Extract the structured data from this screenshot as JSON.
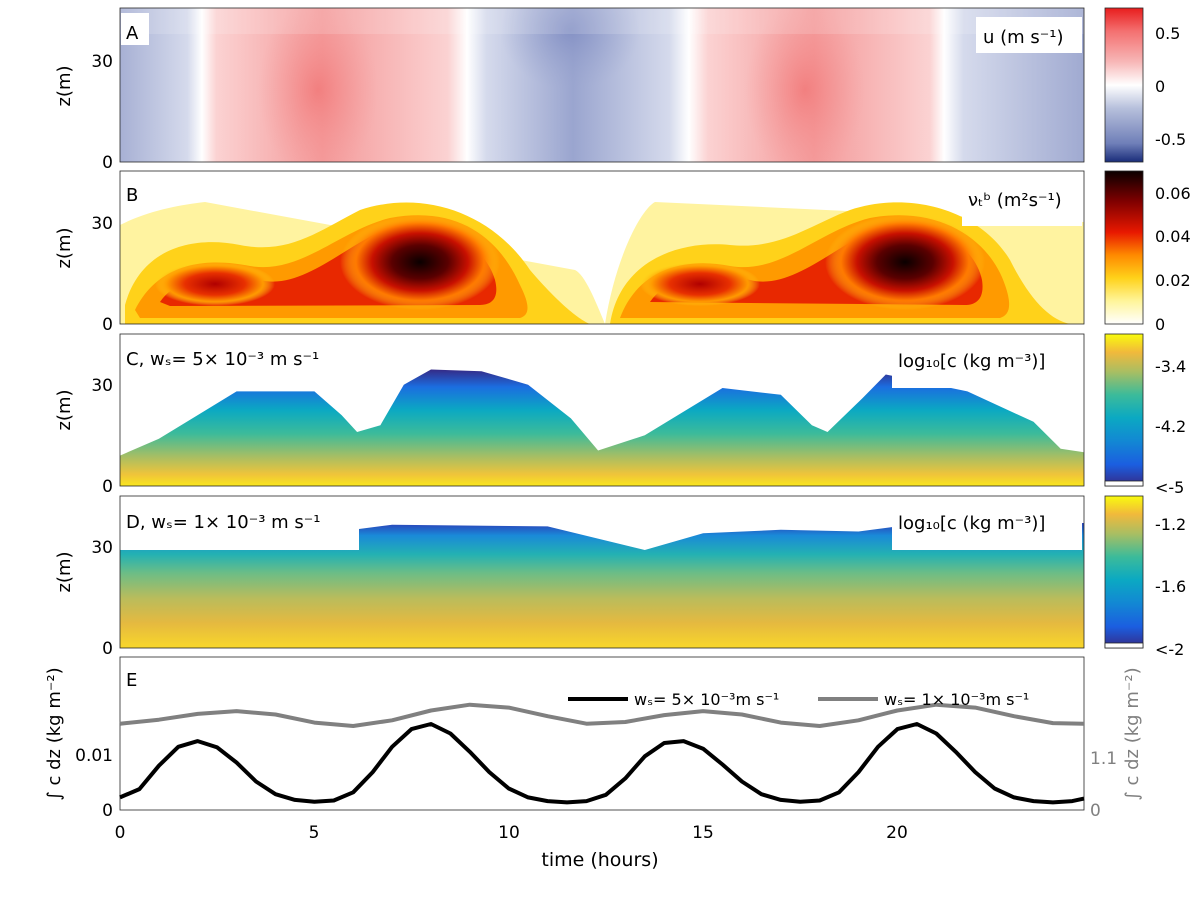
{
  "figure": {
    "xlabel": "time (hours)",
    "x_ticks": [
      0,
      5,
      10,
      15,
      20
    ],
    "xlim": [
      0,
      24.8
    ]
  },
  "chart_data": [
    {
      "panel": "A",
      "type": "heatmap",
      "quantity_label": "u (m s⁻¹)",
      "ylabel": "z(m)",
      "ylim": [
        0,
        45
      ],
      "y_ticks": [
        0,
        30
      ],
      "field": "along-channel velocity, tidal with two flood/ebb cycles",
      "colorbar": {
        "colormap": "blue-white-red",
        "range": [
          -0.7,
          0.7
        ],
        "ticks": [
          0.5,
          0,
          -0.5
        ]
      }
    },
    {
      "panel": "B",
      "type": "heatmap",
      "quantity_label": "νₜᵇ (m²s⁻¹)",
      "ylabel": "z(m)",
      "ylim": [
        0,
        45
      ],
      "y_ticks": [
        0,
        30
      ],
      "field": "eddy viscosity, maxima near t=8 h and t=20.5 h at z~18 m",
      "colorbar": {
        "colormap": "hot (white-yellow-red-black)",
        "range": [
          0,
          0.07
        ],
        "ticks": [
          0.06,
          0.04,
          0.02,
          0
        ]
      }
    },
    {
      "panel": "C",
      "type": "heatmap",
      "panel_label": "C, wₛ= 5× 10⁻³ m s⁻¹",
      "quantity_label": "log₁₀[c (kg m⁻³)]",
      "ylabel": "z(m)",
      "ylim": [
        0,
        45
      ],
      "y_ticks": [
        0,
        30
      ],
      "top_envelope": [
        [
          0,
          9
        ],
        [
          1,
          14
        ],
        [
          2,
          21
        ],
        [
          3,
          28
        ],
        [
          5,
          28
        ],
        [
          5.7,
          21
        ],
        [
          6.1,
          16
        ],
        [
          6.7,
          18
        ],
        [
          7.3,
          30
        ],
        [
          8,
          34.5
        ],
        [
          9.3,
          34
        ],
        [
          10.5,
          30
        ],
        [
          11.6,
          20
        ],
        [
          12.3,
          10.5
        ],
        [
          13.5,
          15
        ],
        [
          15.5,
          29
        ],
        [
          17,
          27
        ],
        [
          17.8,
          18
        ],
        [
          18.2,
          16
        ],
        [
          19.1,
          26
        ],
        [
          19.7,
          33
        ],
        [
          21.8,
          28
        ],
        [
          23.5,
          19
        ],
        [
          24.2,
          11
        ],
        [
          24.8,
          10
        ]
      ],
      "colorbar": {
        "colormap": "parula",
        "range": [
          -5,
          -3
        ],
        "ticks": [
          "-3.4",
          "-4.2",
          "<-5"
        ]
      }
    },
    {
      "panel": "D",
      "type": "heatmap",
      "panel_label": "D, wₛ= 1× 10⁻³ m s⁻¹",
      "quantity_label": "log₁₀[c (kg m⁻³)]",
      "ylabel": "z(m)",
      "ylim": [
        0,
        45
      ],
      "y_ticks": [
        0,
        30
      ],
      "top_envelope": [
        [
          0,
          29
        ],
        [
          4,
          32
        ],
        [
          6,
          35
        ],
        [
          7,
          36.5
        ],
        [
          11,
          36
        ],
        [
          13.5,
          29
        ],
        [
          15,
          34
        ],
        [
          17,
          35
        ],
        [
          19,
          34.5
        ],
        [
          20,
          36
        ],
        [
          24.8,
          37
        ]
      ],
      "colorbar": {
        "colormap": "parula",
        "range": [
          -2,
          -1.05
        ],
        "ticks": [
          "-1.2",
          "-1.6",
          "<-2"
        ]
      }
    },
    {
      "panel": "E",
      "type": "line",
      "ylabel_left": "∫ c dz (kg m⁻²)",
      "ylabel_right": "∫ c dz (kg m⁻²)",
      "left_ylim": [
        0,
        0.0242
      ],
      "left_ticks": [
        "0",
        "0.01"
      ],
      "right_ylim": [
        0,
        2.66
      ],
      "right_ticks": [
        "0",
        "1.1"
      ],
      "series": [
        {
          "name": "wₛ= 5× 10⁻³m s⁻¹",
          "axis": "left",
          "color": "#000000",
          "x": [
            0,
            0.5,
            1.0,
            1.5,
            2.0,
            2.5,
            3.0,
            3.5,
            4.0,
            4.5,
            5.0,
            5.5,
            6.0,
            6.5,
            7.0,
            7.5,
            8.0,
            8.5,
            9.0,
            9.5,
            10.0,
            10.5,
            11.0,
            11.5,
            12.0,
            12.5,
            13.0,
            13.5,
            14.0,
            14.5,
            15.0,
            15.5,
            16.0,
            16.5,
            17.0,
            17.5,
            18.0,
            18.5,
            19.0,
            19.5,
            20.0,
            20.5,
            21.0,
            21.5,
            22.0,
            22.5,
            23.0,
            23.5,
            24.0,
            24.5,
            24.8
          ],
          "y": [
            0.002,
            0.0033,
            0.007,
            0.01,
            0.0109,
            0.0099,
            0.0075,
            0.0045,
            0.0025,
            0.0016,
            0.0013,
            0.0015,
            0.0028,
            0.006,
            0.01,
            0.0128,
            0.0136,
            0.0121,
            0.0092,
            0.006,
            0.0034,
            0.002,
            0.0014,
            0.0012,
            0.0014,
            0.0024,
            0.005,
            0.0085,
            0.0106,
            0.0109,
            0.0097,
            0.0072,
            0.0045,
            0.0025,
            0.0016,
            0.0013,
            0.0015,
            0.0028,
            0.006,
            0.01,
            0.0128,
            0.0136,
            0.0121,
            0.0092,
            0.006,
            0.0034,
            0.002,
            0.0014,
            0.0012,
            0.0014,
            0.0018
          ]
        },
        {
          "name": "wₛ= 1× 10⁻³m s⁻¹",
          "axis": "right",
          "color": "#808080",
          "x": [
            0,
            1,
            2,
            3,
            4,
            5,
            6,
            7,
            8,
            9,
            10,
            11,
            12,
            13,
            14,
            15,
            16,
            17,
            18,
            19,
            20,
            21,
            22,
            23,
            24,
            24.8
          ],
          "y": [
            1.5,
            1.57,
            1.67,
            1.72,
            1.66,
            1.52,
            1.46,
            1.56,
            1.73,
            1.83,
            1.78,
            1.63,
            1.5,
            1.53,
            1.65,
            1.72,
            1.66,
            1.52,
            1.46,
            1.56,
            1.73,
            1.83,
            1.78,
            1.63,
            1.51,
            1.5
          ]
        }
      ]
    }
  ]
}
